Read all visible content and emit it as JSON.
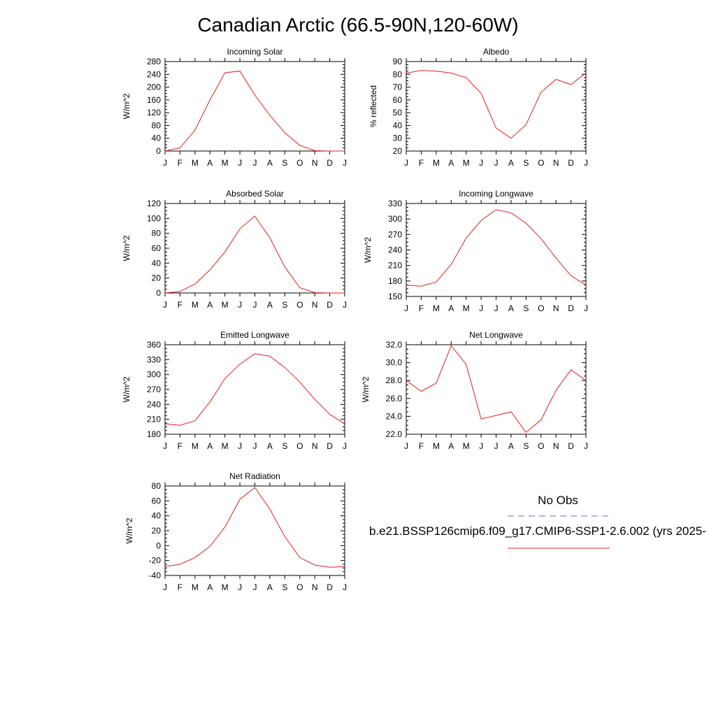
{
  "title": "Canadian Arctic (66.5-90N,120-60W)",
  "legend": {
    "obs_label": "No Obs",
    "model_label": "b.e21.BSSP126cmip6.f09_g17.CMIP6-SSP1-2.6.002 (yrs 2025-",
    "obs_color": "#6b6bd8",
    "model_color": "#e02020"
  },
  "chart_data": [
    {
      "type": "line",
      "title": "Incoming Solar",
      "ylabel": "W/m^2",
      "x": [
        "J",
        "F",
        "M",
        "A",
        "M",
        "J",
        "J",
        "A",
        "S",
        "O",
        "N",
        "D",
        "J"
      ],
      "ylim": [
        0,
        280
      ],
      "yticks": [
        "0",
        "40",
        "80",
        "120",
        "160",
        "200",
        "240",
        "280"
      ],
      "series": [
        {
          "values": [
            0,
            10,
            65,
            160,
            245,
            250,
            175,
            112,
            57,
            18,
            1,
            0,
            0
          ],
          "color": "#e02020"
        }
      ]
    },
    {
      "type": "line",
      "title": "Albedo",
      "ylabel": "% reflected",
      "x": [
        "J",
        "F",
        "M",
        "A",
        "M",
        "J",
        "J",
        "A",
        "S",
        "O",
        "N",
        "D",
        "J"
      ],
      "ylim": [
        20,
        90
      ],
      "yticks": [
        "20",
        "30",
        "40",
        "50",
        "60",
        "70",
        "80",
        "90"
      ],
      "series": [
        {
          "values": [
            81,
            83,
            82.5,
            81,
            77.5,
            65,
            38,
            30,
            40.5,
            66,
            76,
            72,
            81
          ],
          "color": "#e02020"
        }
      ]
    },
    {
      "type": "line",
      "title": "Absorbed Solar",
      "ylabel": "W/m^2",
      "x": [
        "J",
        "F",
        "M",
        "A",
        "M",
        "J",
        "J",
        "A",
        "S",
        "O",
        "N",
        "D",
        "J"
      ],
      "ylim": [
        0,
        120
      ],
      "yticks": [
        "0",
        "20",
        "40",
        "60",
        "80",
        "100",
        "120"
      ],
      "series": [
        {
          "values": [
            0,
            2,
            12,
            31,
            55,
            86,
            103,
            74,
            35,
            7,
            0.5,
            0,
            0
          ],
          "color": "#e02020"
        }
      ]
    },
    {
      "type": "line",
      "title": "Incoming Longwave",
      "ylabel": "W/m^2",
      "x": [
        "J",
        "F",
        "M",
        "A",
        "M",
        "J",
        "J",
        "A",
        "S",
        "O",
        "N",
        "D",
        "J"
      ],
      "ylim": [
        150,
        330
      ],
      "yticks": [
        "150",
        "180",
        "210",
        "240",
        "270",
        "300",
        "330"
      ],
      "series": [
        {
          "values": [
            172,
            170,
            178,
            212,
            263,
            297,
            318,
            312,
            292,
            262,
            224,
            190,
            172
          ],
          "color": "#e02020"
        }
      ]
    },
    {
      "type": "line",
      "title": "Emitted Longwave",
      "ylabel": "W/m^2",
      "x": [
        "J",
        "F",
        "M",
        "A",
        "M",
        "J",
        "J",
        "A",
        "S",
        "O",
        "N",
        "D",
        "J"
      ],
      "ylim": [
        180,
        360
      ],
      "yticks": [
        "180",
        "210",
        "240",
        "270",
        "300",
        "330",
        "360"
      ],
      "series": [
        {
          "values": [
            201,
            198,
            207,
            245,
            292,
            321,
            342,
            337,
            314,
            285,
            250,
            220,
            201
          ],
          "color": "#e02020"
        }
      ]
    },
    {
      "type": "line",
      "title": "Net Longwave",
      "ylabel": "W/m^2",
      "x": [
        "J",
        "F",
        "M",
        "A",
        "M",
        "J",
        "J",
        "A",
        "S",
        "O",
        "N",
        "D",
        "J"
      ],
      "ylim": [
        22,
        32
      ],
      "yticks": [
        "22.0",
        "24.0",
        "26.0",
        "28.0",
        "30.0",
        "32.0"
      ],
      "series": [
        {
          "values": [
            28,
            26.8,
            27.7,
            31.9,
            29.8,
            23.7,
            24.1,
            24.5,
            22.2,
            23.6,
            26.9,
            29.2,
            28
          ],
          "color": "#e02020"
        }
      ]
    },
    {
      "type": "line",
      "title": "Net Radiation",
      "ylabel": "W/m^2",
      "x": [
        "J",
        "F",
        "M",
        "A",
        "M",
        "J",
        "J",
        "A",
        "S",
        "O",
        "N",
        "D",
        "J"
      ],
      "ylim": [
        -40,
        80
      ],
      "yticks": [
        "-40",
        "-20",
        "0",
        "20",
        "40",
        "60",
        "80"
      ],
      "series": [
        {
          "values": [
            -28,
            -25,
            -16,
            -1,
            25,
            62,
            78,
            49,
            12,
            -16,
            -26,
            -29,
            -28
          ],
          "color": "#e02020"
        }
      ]
    }
  ]
}
